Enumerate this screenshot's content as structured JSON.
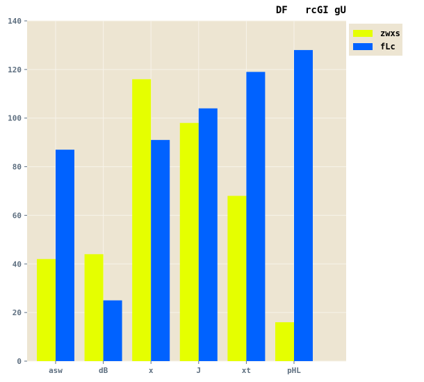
{
  "chart_data": {
    "type": "bar",
    "title": "DF   rcGI gU",
    "categories": [
      "asw",
      "dB",
      "x",
      "J",
      "xt",
      "pHL"
    ],
    "series": [
      {
        "name": "zwxs",
        "color": "#e5ff00",
        "values": [
          42,
          44,
          116,
          98,
          68,
          16
        ]
      },
      {
        "name": "fLc",
        "color": "#0062ff",
        "values": [
          87,
          25,
          91,
          104,
          119,
          128
        ]
      }
    ],
    "yticks": [
      0,
      20,
      40,
      60,
      80,
      100,
      120,
      140
    ],
    "ylim": [
      0,
      140
    ],
    "grid": true,
    "legend_position": "top-right",
    "plot_background": "#ede5d2",
    "tick_color": "#5e6f80"
  }
}
